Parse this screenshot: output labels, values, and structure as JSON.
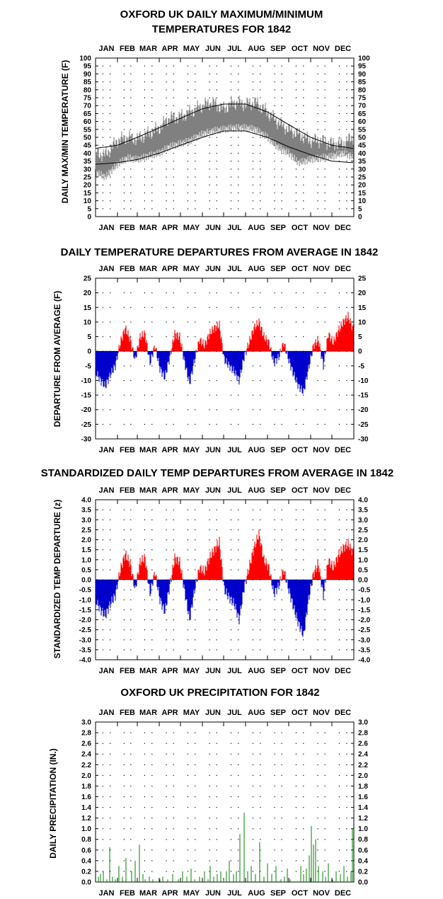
{
  "months": [
    "JAN",
    "FEB",
    "MAR",
    "APR",
    "MAY",
    "JUN",
    "JUL",
    "AUG",
    "SEP",
    "OCT",
    "NOV",
    "DEC"
  ],
  "colors": {
    "max_min": "#808080",
    "normal_line": "#000000",
    "positive": "#ff0000",
    "negative": "#0000cc",
    "precip": "#008000"
  },
  "chart_data": [
    {
      "id": "maxmin",
      "type": "area",
      "title_line1": "OXFORD UK DAILY MAXIMUM/MINIMUM",
      "title_line2": "TEMPERATURES FOR 1842",
      "ylabel": "DAILY MAX/MIN TEMPERATURE (F)",
      "ylim": [
        0,
        100
      ],
      "yticks": [
        "0",
        "5",
        "10",
        "15",
        "20",
        "25",
        "30",
        "35",
        "40",
        "45",
        "50",
        "55",
        "60",
        "65",
        "70",
        "75",
        "80",
        "85",
        "90",
        "95",
        "100"
      ],
      "x_unit": "day of year",
      "series": [
        {
          "kind": "daily_max",
          "x": [
            1,
            15,
            32,
            46,
            60,
            74,
            91,
            105,
            121,
            135,
            152,
            166,
            182,
            196,
            213,
            227,
            244,
            258,
            274,
            288,
            305,
            319,
            335,
            350,
            365
          ],
          "values": [
            40,
            39,
            48,
            50,
            49,
            52,
            56,
            62,
            63,
            66,
            70,
            72,
            68,
            72,
            71,
            72,
            66,
            60,
            55,
            52,
            48,
            48,
            46,
            46,
            50
          ]
        },
        {
          "kind": "daily_min",
          "x": [
            1,
            15,
            32,
            46,
            60,
            74,
            91,
            105,
            121,
            135,
            152,
            166,
            182,
            196,
            213,
            227,
            244,
            258,
            274,
            288,
            305,
            319,
            335,
            350,
            365
          ],
          "values": [
            28,
            25,
            33,
            37,
            36,
            38,
            40,
            44,
            46,
            48,
            52,
            54,
            55,
            56,
            56,
            55,
            50,
            44,
            40,
            34,
            36,
            37,
            38,
            40,
            38
          ]
        },
        {
          "kind": "normal_max",
          "x": [
            1,
            32,
            60,
            91,
            121,
            152,
            182,
            213,
            244,
            274,
            305,
            335,
            365
          ],
          "values": [
            43,
            45,
            50,
            56,
            62,
            68,
            71,
            71,
            66,
            58,
            50,
            45,
            43
          ]
        },
        {
          "kind": "normal_min",
          "x": [
            1,
            32,
            60,
            91,
            121,
            152,
            182,
            213,
            244,
            274,
            305,
            335,
            365
          ],
          "values": [
            33,
            34,
            36,
            40,
            45,
            50,
            54,
            54,
            50,
            44,
            39,
            35,
            34
          ]
        }
      ]
    },
    {
      "id": "departure",
      "type": "bar",
      "title": "DAILY TEMPERATURE DEPARTURES FROM AVERAGE IN 1842",
      "ylabel": "DEPARTURE FROM AVERAGE (F)",
      "ylim": [
        -30,
        25
      ],
      "yticks": [
        "25",
        "20",
        "15",
        "10",
        "5",
        "0",
        "-5",
        "-10",
        "-15",
        "-20",
        "-25",
        "-30"
      ],
      "x": [
        1,
        8,
        15,
        22,
        29,
        36,
        43,
        50,
        57,
        64,
        71,
        78,
        85,
        92,
        99,
        106,
        113,
        120,
        127,
        134,
        141,
        148,
        155,
        162,
        169,
        176,
        183,
        190,
        197,
        204,
        211,
        218,
        225,
        232,
        239,
        246,
        253,
        260,
        267,
        274,
        281,
        288,
        295,
        302,
        309,
        316,
        323,
        330,
        337,
        344,
        351,
        358,
        364
      ],
      "values": [
        -7,
        -10,
        -12,
        -8,
        -5,
        3,
        8,
        4,
        -3,
        5,
        6,
        -4,
        2,
        -6,
        -9,
        -2,
        6,
        5,
        -4,
        -11,
        -3,
        4,
        2,
        6,
        8,
        9,
        -3,
        -5,
        -7,
        -10,
        -2,
        3,
        8,
        10,
        5,
        3,
        -4,
        -2,
        3,
        -3,
        -8,
        -12,
        -14,
        -6,
        2,
        4,
        -5,
        6,
        3,
        7,
        10,
        12,
        8
      ]
    },
    {
      "id": "standardized",
      "type": "bar",
      "title": "STANDARDIZED DAILY TEMP DEPARTURES FROM AVERAGE IN 1842",
      "ylabel": "STANDARDIZED TEMP DEPARTURE (z)",
      "ylim": [
        -4,
        4
      ],
      "yticks": [
        "4.0",
        "3.5",
        "3.0",
        "2.5",
        "2.0",
        "1.5",
        "1.0",
        "0.5",
        "0.0",
        "-0.5",
        "-1.0",
        "-1.5",
        "-2.0",
        "-2.5",
        "-3.0",
        "-3.5",
        "-4.0"
      ],
      "x": [
        1,
        8,
        15,
        22,
        29,
        36,
        43,
        50,
        57,
        64,
        71,
        78,
        85,
        92,
        99,
        106,
        113,
        120,
        127,
        134,
        141,
        148,
        155,
        162,
        169,
        176,
        183,
        190,
        197,
        204,
        211,
        218,
        225,
        232,
        239,
        246,
        253,
        260,
        267,
        274,
        281,
        288,
        295,
        302,
        309,
        316,
        323,
        330,
        337,
        344,
        351,
        358,
        364
      ],
      "values": [
        -1.0,
        -1.5,
        -1.8,
        -1.2,
        -0.8,
        0.5,
        1.3,
        0.8,
        -0.5,
        0.9,
        1.1,
        -0.7,
        0.4,
        -1.0,
        -1.6,
        -0.3,
        1.1,
        0.9,
        -0.6,
        -2.0,
        -0.5,
        0.6,
        0.4,
        1.1,
        1.5,
        1.9,
        -0.5,
        -0.9,
        -1.2,
        -2.0,
        -0.4,
        0.6,
        1.6,
        2.3,
        1.0,
        0.6,
        -0.7,
        -0.3,
        0.5,
        -0.5,
        -1.4,
        -2.2,
        -2.8,
        -1.0,
        0.3,
        0.8,
        -0.8,
        1.0,
        0.6,
        1.2,
        1.6,
        1.8,
        1.4
      ]
    },
    {
      "id": "precip",
      "type": "bar",
      "title": "OXFORD UK PRECIPITATION FOR 1842",
      "ylabel": "DAILY PRECIPITATION (IN.)",
      "ylim": [
        0,
        3
      ],
      "yticks": [
        "0.0",
        "0.2",
        "0.4",
        "0.6",
        "0.8",
        "1.0",
        "1.2",
        "1.4",
        "1.6",
        "1.8",
        "2.0",
        "2.2",
        "2.4",
        "2.6",
        "2.8",
        "3.0"
      ],
      "x": [
        5,
        8,
        12,
        17,
        21,
        25,
        29,
        34,
        39,
        44,
        52,
        57,
        63,
        68,
        71,
        77,
        82,
        92,
        96,
        103,
        110,
        118,
        124,
        130,
        136,
        141,
        148,
        155,
        160,
        163,
        168,
        173,
        178,
        182,
        186,
        190,
        196,
        200,
        205,
        211,
        216,
        221,
        227,
        233,
        239,
        244,
        250,
        256,
        263,
        268,
        272,
        276,
        291,
        295,
        299,
        303,
        306,
        309,
        312,
        316,
        322,
        326,
        330,
        336,
        341,
        347,
        352,
        357,
        362,
        364
      ],
      "values": [
        0.1,
        0.15,
        0.2,
        0.05,
        0.65,
        0.1,
        0.05,
        0.3,
        0.1,
        0.45,
        0.2,
        0.4,
        0.7,
        0.15,
        0.05,
        0.1,
        0.05,
        0.05,
        0.1,
        0.05,
        0.15,
        0.05,
        0.2,
        0.1,
        0.25,
        0.05,
        0.1,
        0.2,
        0.05,
        0.3,
        0.1,
        0.15,
        0.2,
        0.05,
        0.2,
        0.4,
        0.15,
        0.2,
        0.9,
        1.3,
        0.2,
        0.3,
        0.15,
        0.75,
        0.1,
        0.35,
        0.15,
        0.3,
        0.05,
        0.1,
        0.25,
        0.05,
        0.3,
        0.15,
        0.25,
        0.5,
        1.05,
        0.7,
        0.8,
        0.3,
        0.2,
        0.1,
        0.35,
        0.05,
        0.2,
        0.15,
        0.3,
        0.1,
        0.2,
        1.0
      ]
    }
  ]
}
